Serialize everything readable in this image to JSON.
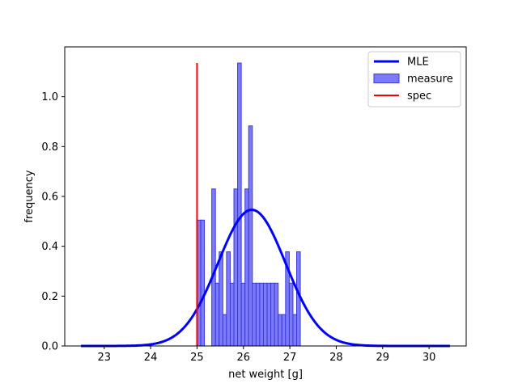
{
  "chart_data": {
    "type": "bar",
    "title": "",
    "xlabel": "net weight [g]",
    "ylabel": "frequency",
    "xlim": [
      22.15,
      30.8
    ],
    "ylim": [
      0,
      1.2
    ],
    "xticks": [
      23,
      24,
      25,
      26,
      27,
      28,
      29,
      30
    ],
    "yticks": [
      0.0,
      0.2,
      0.4,
      0.6,
      0.8,
      1.0
    ],
    "ytick_labels": [
      "0.0",
      "0.2",
      "0.4",
      "0.6",
      "0.8",
      "1.0"
    ],
    "grid": false,
    "legend_position": "top-right",
    "histogram": {
      "name": "measure",
      "color": "#7b7bfb",
      "edge_color": "#3a3ad8",
      "bin_start": 25.0,
      "bin_width": 0.0795,
      "values": [
        0.505,
        0.505,
        0.0,
        0.0,
        0.63,
        0.252,
        0.378,
        0.126,
        0.378,
        0.252,
        0.63,
        1.135,
        0.252,
        0.63,
        0.883,
        0.252,
        0.252,
        0.252,
        0.252,
        0.252,
        0.252,
        0.252,
        0.126,
        0.126,
        0.378,
        0.252,
        0.126,
        0.378
      ]
    },
    "series": [
      {
        "name": "MLE",
        "kind": "normal-pdf",
        "color": "#0000ff",
        "mean": 26.18,
        "std": 0.73,
        "x_range": [
          22.5,
          30.45
        ]
      }
    ],
    "spec_line": {
      "name": "spec",
      "color": "#ff0000",
      "x": 25.0,
      "y_range": [
        0,
        1.135
      ]
    },
    "legend": [
      {
        "label": "MLE",
        "kind": "line",
        "color": "#0000ff"
      },
      {
        "label": "measure",
        "kind": "patch",
        "color": "#7b7bfb"
      },
      {
        "label": "spec",
        "kind": "line",
        "color": "#ff0000"
      }
    ]
  }
}
